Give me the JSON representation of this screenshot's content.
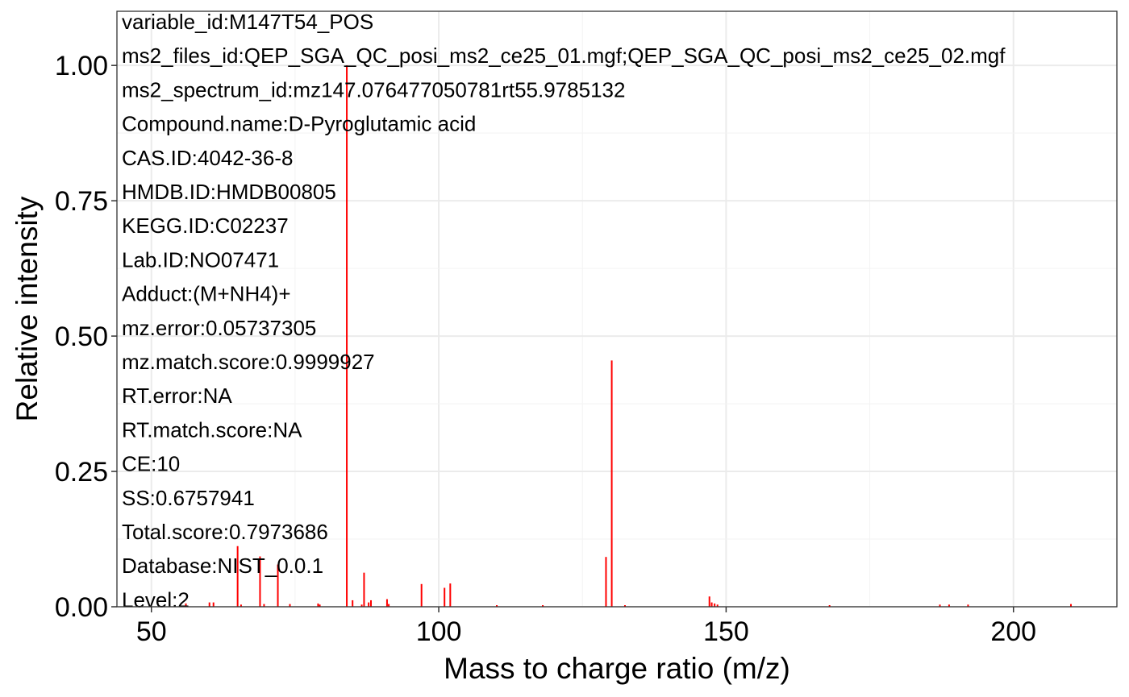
{
  "chart_data": {
    "type": "bar",
    "xlabel": "Mass to charge ratio (m/z)",
    "ylabel": "Relative intensity",
    "xlim": [
      44,
      218
    ],
    "ylim": [
      0,
      1.1
    ],
    "xticks": [
      50,
      100,
      150,
      200
    ],
    "xtick_labels": [
      "50",
      "100",
      "150",
      "200"
    ],
    "yticks": [
      0,
      0.25,
      0.5,
      0.75,
      1.0
    ],
    "ytick_labels": [
      "0.00",
      "0.25",
      "0.50",
      "0.75",
      "1.00"
    ],
    "grid": true,
    "series_color": "#ff0000",
    "annotations": [
      "variable_id:M147T54_POS",
      "ms2_files_id:QEP_SGA_QC_posi_ms2_ce25_01.mgf;QEP_SGA_QC_posi_ms2_ce25_02.mgf",
      "ms2_spectrum_id:mz147.076477050781rt55.9785132",
      "Compound.name:D-Pyroglutamic acid",
      "CAS.ID:4042-36-8",
      "HMDB.ID:HMDB00805",
      "KEGG.ID:C02237",
      "Lab.ID:NO07471",
      "Adduct:(M+NH4)+",
      "mz.error:0.05737305",
      "mz.match.score:0.9999927",
      "RT.error:NA",
      "RT.match.score:NA",
      "CE:10",
      "SS:0.6757941",
      "Total.score:0.7973686",
      "Database:NIST_0.0.1",
      "Level:2"
    ],
    "peaks": [
      {
        "mz": 56.0,
        "intensity": 0.006
      },
      {
        "mz": 60.1,
        "intensity": 0.008
      },
      {
        "mz": 60.8,
        "intensity": 0.008
      },
      {
        "mz": 65.0,
        "intensity": 0.112
      },
      {
        "mz": 65.6,
        "intensity": 0.004
      },
      {
        "mz": 68.9,
        "intensity": 0.093
      },
      {
        "mz": 69.6,
        "intensity": 0.005
      },
      {
        "mz": 72.0,
        "intensity": 0.078
      },
      {
        "mz": 74.1,
        "intensity": 0.005
      },
      {
        "mz": 79.0,
        "intensity": 0.006
      },
      {
        "mz": 79.3,
        "intensity": 0.004
      },
      {
        "mz": 84.0,
        "intensity": 1.0
      },
      {
        "mz": 85.0,
        "intensity": 0.012
      },
      {
        "mz": 87.0,
        "intensity": 0.063
      },
      {
        "mz": 86.6,
        "intensity": 0.004
      },
      {
        "mz": 87.8,
        "intensity": 0.008
      },
      {
        "mz": 88.2,
        "intensity": 0.012
      },
      {
        "mz": 91.0,
        "intensity": 0.014
      },
      {
        "mz": 91.3,
        "intensity": 0.005
      },
      {
        "mz": 97.0,
        "intensity": 0.042
      },
      {
        "mz": 101.0,
        "intensity": 0.035
      },
      {
        "mz": 102.0,
        "intensity": 0.043
      },
      {
        "mz": 110.1,
        "intensity": 0.003
      },
      {
        "mz": 118.1,
        "intensity": 0.003
      },
      {
        "mz": 129.1,
        "intensity": 0.092
      },
      {
        "mz": 130.1,
        "intensity": 0.455
      },
      {
        "mz": 132.4,
        "intensity": 0.003
      },
      {
        "mz": 147.1,
        "intensity": 0.019
      },
      {
        "mz": 147.5,
        "intensity": 0.008
      },
      {
        "mz": 148.0,
        "intensity": 0.006
      },
      {
        "mz": 148.5,
        "intensity": 0.004
      },
      {
        "mz": 168.0,
        "intensity": 0.003
      },
      {
        "mz": 187.2,
        "intensity": 0.004
      },
      {
        "mz": 188.8,
        "intensity": 0.004
      },
      {
        "mz": 192.1,
        "intensity": 0.004
      },
      {
        "mz": 210.0,
        "intensity": 0.005
      }
    ]
  }
}
